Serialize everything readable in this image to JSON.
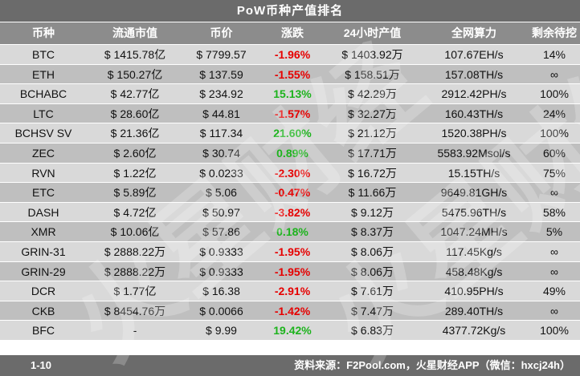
{
  "title": "PoW币种产值排名",
  "headers": [
    "币种",
    "流通市值",
    "币价",
    "涨跌",
    "24小时产值",
    "全网算力",
    "剩余待挖"
  ],
  "rows": [
    {
      "coin": "BTC",
      "cap": "$ 1415.78亿",
      "price": "$ 7799.57",
      "change": "-1.96%",
      "dir": "neg",
      "output": "$ 1403.92万",
      "hash": "107.67EH/s",
      "left": "14%"
    },
    {
      "coin": "ETH",
      "cap": "$ 150.27亿",
      "price": "$ 137.59",
      "change": "-1.55%",
      "dir": "neg",
      "output": "$ 158.51万",
      "hash": "157.08TH/s",
      "left": "∞"
    },
    {
      "coin": "BCHABC",
      "cap": "$ 42.77亿",
      "price": "$ 234.92",
      "change": "15.13%",
      "dir": "pos",
      "output": "$ 42.29万",
      "hash": "2912.42PH/s",
      "left": "100%"
    },
    {
      "coin": "LTC",
      "cap": "$ 28.60亿",
      "price": "$ 44.81",
      "change": "-1.57%",
      "dir": "neg",
      "output": "$ 32.27万",
      "hash": "160.43TH/s",
      "left": "24%"
    },
    {
      "coin": "BCHSV SV",
      "cap": "$ 21.36亿",
      "price": "$ 117.34",
      "change": "21.60%",
      "dir": "pos",
      "output": "$ 21.12万",
      "hash": "1520.38PH/s",
      "left": "100%"
    },
    {
      "coin": "ZEC",
      "cap": "$ 2.60亿",
      "price": "$ 30.74",
      "change": "0.89%",
      "dir": "pos",
      "output": "$ 17.71万",
      "hash": "5583.92Msol/s",
      "left": "60%"
    },
    {
      "coin": "RVN",
      "cap": "$ 1.22亿",
      "price": "$ 0.0233",
      "change": "-2.30%",
      "dir": "neg",
      "output": "$ 16.72万",
      "hash": "15.15TH/s",
      "left": "75%"
    },
    {
      "coin": "ETC",
      "cap": "$ 5.89亿",
      "price": "$ 5.06",
      "change": "-0.47%",
      "dir": "neg",
      "output": "$ 11.66万",
      "hash": "9649.81GH/s",
      "left": "∞"
    },
    {
      "coin": "DASH",
      "cap": "$ 4.72亿",
      "price": "$ 50.97",
      "change": "-3.82%",
      "dir": "neg",
      "output": "$ 9.12万",
      "hash": "5475.96TH/s",
      "left": "58%"
    },
    {
      "coin": "XMR",
      "cap": "$ 10.06亿",
      "price": "$ 57.86",
      "change": "0.18%",
      "dir": "pos",
      "output": "$ 8.37万",
      "hash": "1047.24MH/s",
      "left": "5%"
    },
    {
      "coin": "GRIN-31",
      "cap": "$ 2888.22万",
      "price": "$ 0.9333",
      "change": "-1.95%",
      "dir": "neg",
      "output": "$ 8.06万",
      "hash": "117.45Kg/s",
      "left": "∞"
    },
    {
      "coin": "GRIN-29",
      "cap": "$ 2888.22万",
      "price": "$ 0.9333",
      "change": "-1.95%",
      "dir": "neg",
      "output": "$ 8.06万",
      "hash": "458.48Kg/s",
      "left": "∞"
    },
    {
      "coin": "DCR",
      "cap": "$ 1.77亿",
      "price": "$ 16.38",
      "change": "-2.91%",
      "dir": "neg",
      "output": "$ 7.61万",
      "hash": "410.95PH/s",
      "left": "49%"
    },
    {
      "coin": "CKB",
      "cap": "$ 8454.76万",
      "price": "$ 0.0066",
      "change": "-1.42%",
      "dir": "neg",
      "output": "$ 7.47万",
      "hash": "289.40TH/s",
      "left": "∞"
    },
    {
      "coin": "BFC",
      "cap": "-",
      "price": "$ 9.99",
      "change": "19.42%",
      "dir": "pos",
      "output": "$ 6.83万",
      "hash": "4377.72Kg/s",
      "left": "100%"
    }
  ],
  "footer": {
    "range": "1-10",
    "source": "资料来源：F2Pool.com，火星财经APP（微信：hxcj24h）"
  },
  "watermark": "火星财经",
  "colors": {
    "negative": "#e60000",
    "positive": "#1db31d",
    "header_bg": "#8c8c8c",
    "title_bg": "#6b6b6b"
  }
}
